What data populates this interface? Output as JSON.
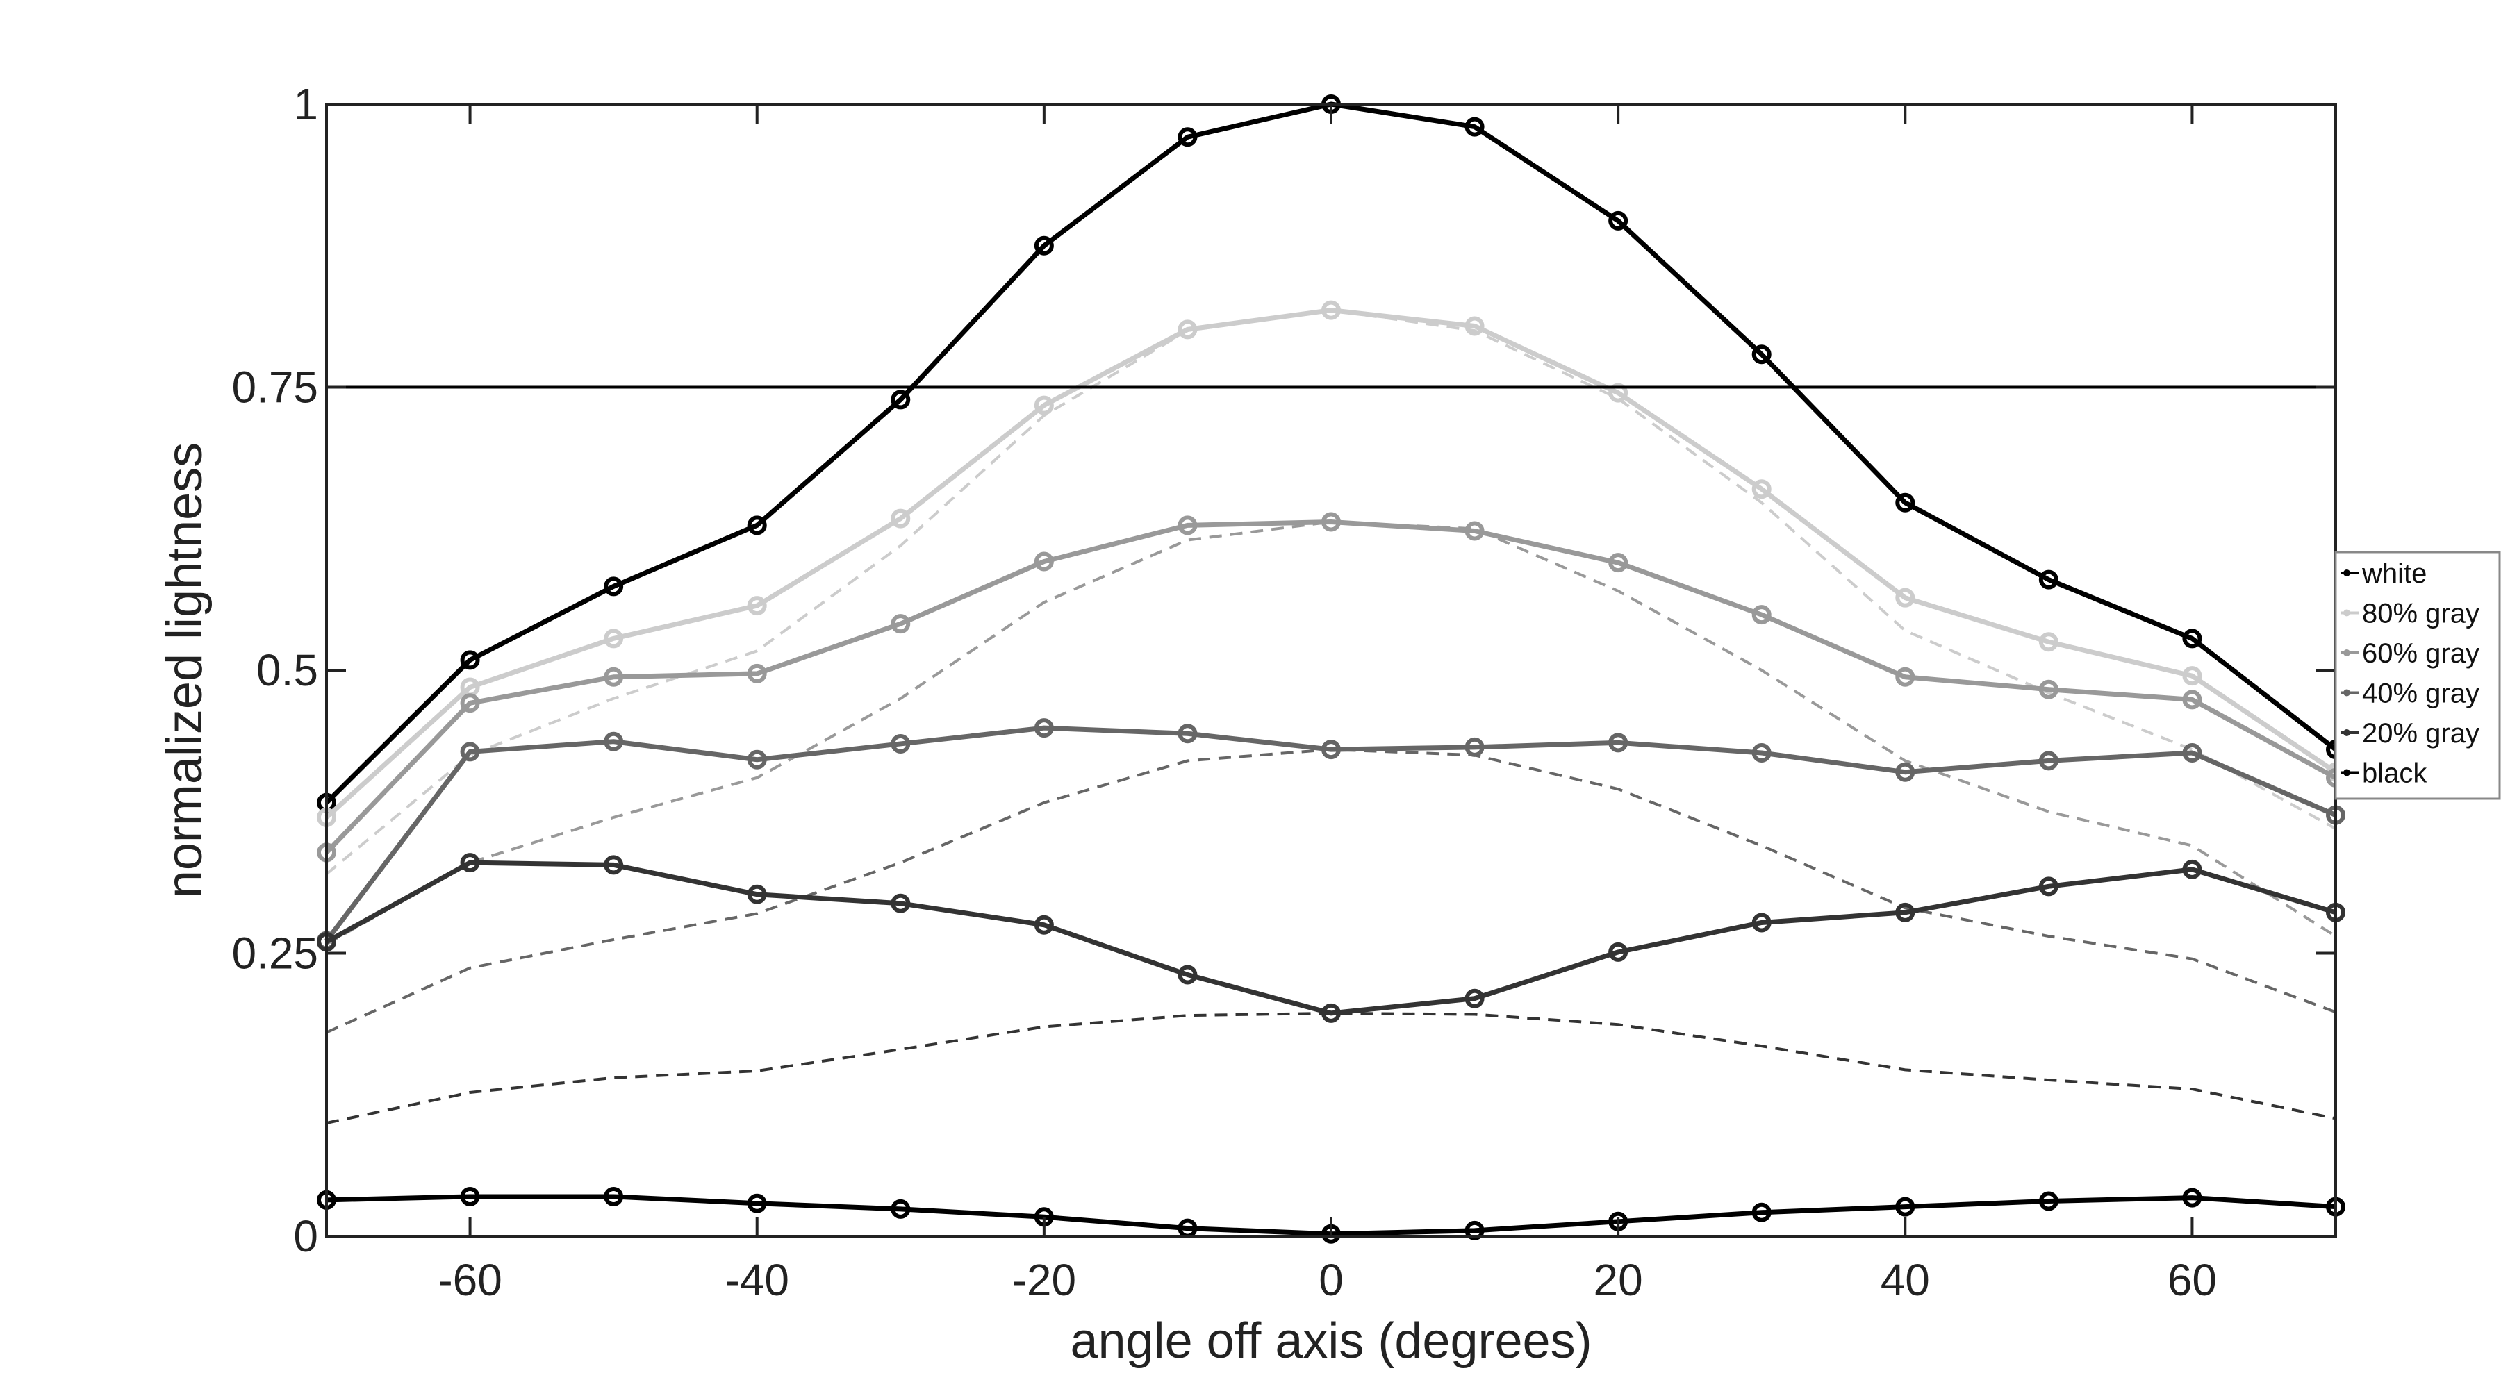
{
  "chart_data": {
    "type": "line",
    "xlabel": "angle off axis (degrees)",
    "ylabel": "normalized lightness",
    "xlim": [
      -70,
      70
    ],
    "ylim": [
      0,
      1
    ],
    "x": [
      -70,
      -60,
      -50,
      -40,
      -30,
      -20,
      -10,
      0,
      10,
      20,
      30,
      40,
      50,
      60,
      70
    ],
    "x_ticks": [
      -60,
      -40,
      -20,
      0,
      20,
      40,
      60
    ],
    "x_tick_labels": [
      "-60",
      "-40",
      "-20",
      "0",
      "20",
      "40",
      "60"
    ],
    "y_ticks": [
      0,
      0.25,
      0.5,
      0.75,
      1
    ],
    "y_tick_labels": [
      "0",
      "0.25",
      "0.5",
      "0.75",
      "1"
    ],
    "reference_line_y": 0.75,
    "legend_position": "right",
    "series": [
      {
        "name": "white",
        "color": "#000000",
        "values": [
          0.383,
          0.509,
          0.574,
          0.628,
          0.739,
          0.875,
          0.971,
          1.0,
          0.98,
          0.897,
          0.779,
          0.648,
          0.58,
          0.528,
          0.43
        ]
      },
      {
        "name": "80% gray",
        "color": "#cccccc",
        "values": [
          0.37,
          0.485,
          0.528,
          0.557,
          0.634,
          0.734,
          0.801,
          0.818,
          0.804,
          0.745,
          0.66,
          0.564,
          0.525,
          0.495,
          0.41
        ]
      },
      {
        "name": "60% gray",
        "color": "#999999",
        "values": [
          0.339,
          0.471,
          0.494,
          0.497,
          0.541,
          0.596,
          0.628,
          0.631,
          0.623,
          0.595,
          0.549,
          0.494,
          0.483,
          0.474,
          0.405
        ]
      },
      {
        "name": "40% gray",
        "color": "#666666",
        "values": [
          0.261,
          0.428,
          0.437,
          0.421,
          0.435,
          0.449,
          0.444,
          0.43,
          0.432,
          0.436,
          0.427,
          0.41,
          0.42,
          0.427,
          0.372
        ]
      },
      {
        "name": "20% gray",
        "color": "#333333",
        "values": [
          0.26,
          0.33,
          0.328,
          0.302,
          0.294,
          0.275,
          0.231,
          0.197,
          0.21,
          0.251,
          0.277,
          0.286,
          0.309,
          0.324,
          0.286
        ]
      },
      {
        "name": "black",
        "color": "#000000",
        "values": [
          0.032,
          0.035,
          0.035,
          0.029,
          0.024,
          0.017,
          0.007,
          0.002,
          0.005,
          0.013,
          0.021,
          0.026,
          0.031,
          0.034,
          0.026
        ]
      }
    ],
    "reference_series": [
      {
        "color": "#cccccc",
        "values": [
          0.32,
          0.425,
          0.475,
          0.517,
          0.61,
          0.725,
          0.8,
          0.818,
          0.8,
          0.74,
          0.648,
          0.535,
          0.48,
          0.43,
          0.36
        ]
      },
      {
        "color": "#999999",
        "values": [
          0.258,
          0.33,
          0.37,
          0.405,
          0.475,
          0.56,
          0.615,
          0.631,
          0.625,
          0.57,
          0.5,
          0.42,
          0.375,
          0.345,
          0.265
        ]
      },
      {
        "color": "#666666",
        "values": [
          0.18,
          0.237,
          0.262,
          0.285,
          0.33,
          0.383,
          0.42,
          0.43,
          0.425,
          0.395,
          0.345,
          0.29,
          0.265,
          0.245,
          0.198
        ]
      },
      {
        "color": "#333333",
        "values": [
          0.1,
          0.127,
          0.14,
          0.146,
          0.165,
          0.185,
          0.195,
          0.197,
          0.196,
          0.187,
          0.168,
          0.147,
          0.138,
          0.13,
          0.104
        ]
      }
    ]
  }
}
